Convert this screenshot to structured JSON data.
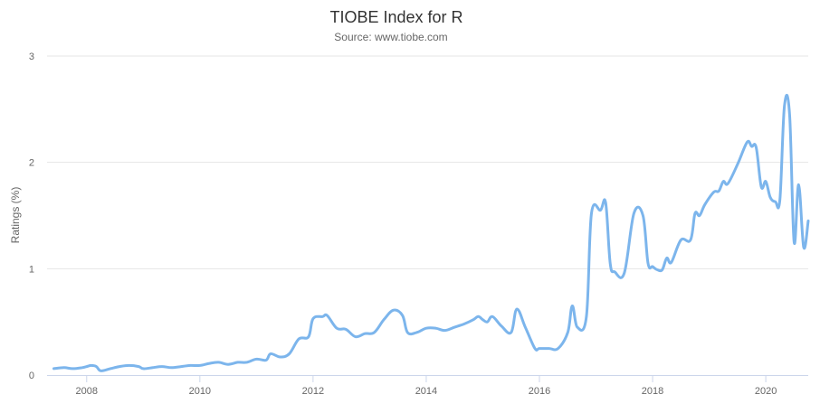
{
  "chart_data": {
    "type": "line",
    "title": "TIOBE Index for R",
    "subtitle": "Source: www.tiobe.com",
    "xlabel": "",
    "ylabel": "Ratings (%)",
    "xlim": [
      2007.3,
      2020.75
    ],
    "ylim": [
      0,
      3
    ],
    "x_ticks": [
      2008,
      2010,
      2012,
      2014,
      2016,
      2018,
      2020
    ],
    "y_ticks": [
      0,
      1,
      2,
      3
    ],
    "grid": true,
    "legend": "none",
    "series": [
      {
        "color": "#7cb5ec",
        "points": [
          [
            2007.42,
            0.06
          ],
          [
            2007.6,
            0.07
          ],
          [
            2007.75,
            0.06
          ],
          [
            2007.92,
            0.07
          ],
          [
            2008.0,
            0.08
          ],
          [
            2008.08,
            0.09
          ],
          [
            2008.17,
            0.08
          ],
          [
            2008.25,
            0.04
          ],
          [
            2008.42,
            0.06
          ],
          [
            2008.58,
            0.08
          ],
          [
            2008.75,
            0.09
          ],
          [
            2008.92,
            0.08
          ],
          [
            2009.0,
            0.06
          ],
          [
            2009.17,
            0.07
          ],
          [
            2009.33,
            0.08
          ],
          [
            2009.5,
            0.07
          ],
          [
            2009.67,
            0.08
          ],
          [
            2009.83,
            0.09
          ],
          [
            2010.0,
            0.09
          ],
          [
            2010.17,
            0.11
          ],
          [
            2010.33,
            0.12
          ],
          [
            2010.5,
            0.1
          ],
          [
            2010.67,
            0.12
          ],
          [
            2010.83,
            0.12
          ],
          [
            2011.0,
            0.15
          ],
          [
            2011.17,
            0.14
          ],
          [
            2011.25,
            0.2
          ],
          [
            2011.42,
            0.17
          ],
          [
            2011.58,
            0.2
          ],
          [
            2011.75,
            0.34
          ],
          [
            2011.92,
            0.36
          ],
          [
            2012.0,
            0.53
          ],
          [
            2012.17,
            0.55
          ],
          [
            2012.25,
            0.56
          ],
          [
            2012.42,
            0.44
          ],
          [
            2012.58,
            0.43
          ],
          [
            2012.75,
            0.36
          ],
          [
            2012.92,
            0.39
          ],
          [
            2013.08,
            0.4
          ],
          [
            2013.25,
            0.52
          ],
          [
            2013.42,
            0.61
          ],
          [
            2013.58,
            0.56
          ],
          [
            2013.67,
            0.4
          ],
          [
            2013.83,
            0.4
          ],
          [
            2014.0,
            0.44
          ],
          [
            2014.17,
            0.44
          ],
          [
            2014.33,
            0.42
          ],
          [
            2014.5,
            0.45
          ],
          [
            2014.67,
            0.48
          ],
          [
            2014.83,
            0.52
          ],
          [
            2014.92,
            0.55
          ],
          [
            2015.0,
            0.52
          ],
          [
            2015.08,
            0.5
          ],
          [
            2015.17,
            0.55
          ],
          [
            2015.33,
            0.46
          ],
          [
            2015.5,
            0.4
          ],
          [
            2015.6,
            0.62
          ],
          [
            2015.75,
            0.45
          ],
          [
            2015.92,
            0.25
          ],
          [
            2016.0,
            0.25
          ],
          [
            2016.17,
            0.25
          ],
          [
            2016.33,
            0.25
          ],
          [
            2016.5,
            0.4
          ],
          [
            2016.58,
            0.65
          ],
          [
            2016.67,
            0.45
          ],
          [
            2016.83,
            0.55
          ],
          [
            2016.92,
            1.52
          ],
          [
            2017.08,
            1.55
          ],
          [
            2017.17,
            1.62
          ],
          [
            2017.25,
            1.05
          ],
          [
            2017.33,
            0.97
          ],
          [
            2017.5,
            0.96
          ],
          [
            2017.67,
            1.52
          ],
          [
            2017.83,
            1.5
          ],
          [
            2017.92,
            1.05
          ],
          [
            2018.0,
            1.02
          ],
          [
            2018.08,
            0.99
          ],
          [
            2018.17,
            0.99
          ],
          [
            2018.25,
            1.1
          ],
          [
            2018.33,
            1.06
          ],
          [
            2018.5,
            1.27
          ],
          [
            2018.67,
            1.27
          ],
          [
            2018.75,
            1.52
          ],
          [
            2018.83,
            1.5
          ],
          [
            2018.92,
            1.6
          ],
          [
            2019.08,
            1.72
          ],
          [
            2019.17,
            1.73
          ],
          [
            2019.25,
            1.82
          ],
          [
            2019.33,
            1.8
          ],
          [
            2019.5,
            1.98
          ],
          [
            2019.67,
            2.19
          ],
          [
            2019.75,
            2.15
          ],
          [
            2019.83,
            2.14
          ],
          [
            2019.92,
            1.77
          ],
          [
            2020.0,
            1.82
          ],
          [
            2020.08,
            1.67
          ],
          [
            2020.17,
            1.63
          ],
          [
            2020.25,
            1.65
          ],
          [
            2020.33,
            2.53
          ],
          [
            2020.42,
            2.45
          ],
          [
            2020.5,
            1.25
          ],
          [
            2020.58,
            1.79
          ],
          [
            2020.67,
            1.2
          ],
          [
            2020.75,
            1.45
          ]
        ]
      }
    ]
  }
}
